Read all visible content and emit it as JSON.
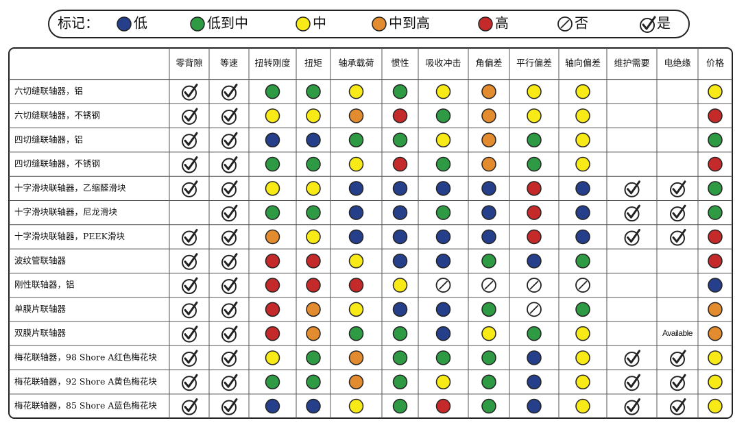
{
  "legend": {
    "title": "标记：",
    "items": [
      {
        "label": "低",
        "color": "#263f8a",
        "symbol": "circle"
      },
      {
        "label": "低到中",
        "color": "#2e9a43",
        "symbol": "circle"
      },
      {
        "label": "中",
        "color": "#f7ea16",
        "symbol": "circle"
      },
      {
        "label": "中到高",
        "color": "#e38b2f",
        "symbol": "circle"
      },
      {
        "label": "高",
        "color": "#c52a2a",
        "symbol": "circle"
      },
      {
        "label": "否",
        "color": "#ffffff",
        "symbol": "no"
      },
      {
        "label": "是",
        "color": "#ffffff",
        "symbol": "check"
      }
    ]
  },
  "table": {
    "columns": [
      "零背隙",
      "等速",
      "扭转刚度",
      "扭矩",
      "轴承载荷",
      "惯性",
      "吸收冲击",
      "角偏差",
      "平行偏差",
      "轴向偏差",
      "维护需要",
      "电绝缘",
      "价格"
    ],
    "rows": [
      {
        "label": "六切缝联轴器，铝",
        "cells": [
          "是",
          "是",
          "低到中",
          "低到中",
          "中",
          "低到中",
          "中",
          "中到高",
          "中",
          "中",
          null,
          null,
          "中"
        ]
      },
      {
        "label": "六切缝联轴器，不锈钢",
        "cells": [
          "是",
          "是",
          "中",
          "中",
          "中到高",
          "高",
          "低到中",
          "中到高",
          "中",
          "中",
          null,
          null,
          "高"
        ]
      },
      {
        "label": "四切缝联轴器，铝",
        "cells": [
          "是",
          "是",
          "低",
          "低",
          "低到中",
          "低到中",
          "中",
          "中到高",
          "低到中",
          "中",
          null,
          null,
          "低到中"
        ]
      },
      {
        "label": "四切缝联轴器，不锈钢",
        "cells": [
          "是",
          "是",
          "低到中",
          "低到中",
          "中",
          "高",
          "低到中",
          "中到高",
          "低到中",
          "中",
          null,
          null,
          "高"
        ]
      },
      {
        "label": "十字滑块联轴器，乙缩醛滑块",
        "cells": [
          "是",
          "是",
          "中",
          "中",
          "低",
          "低",
          "低",
          "低",
          "高",
          "低",
          "是",
          "是",
          "低到中"
        ]
      },
      {
        "label": "十字滑块联轴器，尼龙滑块",
        "cells": [
          null,
          "是",
          "低到中",
          "低到中",
          "低",
          "低",
          "低到中",
          "低",
          "高",
          "低",
          "是",
          "是",
          "低到中"
        ]
      },
      {
        "label": "十字滑块联轴器，PEEK滑块",
        "cells": [
          "是",
          "是",
          "中到高",
          "中",
          "低",
          "低",
          "低",
          "低",
          "高",
          "低",
          "是",
          "是",
          "高"
        ]
      },
      {
        "label": "波纹管联轴器",
        "cells": [
          "是",
          "是",
          "高",
          "高",
          "中",
          "低",
          "低",
          "低到中",
          "低",
          "低到中",
          null,
          null,
          "高"
        ]
      },
      {
        "label": "刚性联轴器，铝",
        "cells": [
          "是",
          "是",
          "高",
          "高",
          "高",
          "中",
          "否",
          "否",
          "否",
          "否",
          null,
          null,
          "低"
        ]
      },
      {
        "label": "单膜片联轴器",
        "cells": [
          "是",
          "是",
          "高",
          "中到高",
          "中",
          "低",
          "低",
          "低到中",
          "否",
          "低到中",
          null,
          null,
          "中到高"
        ]
      },
      {
        "label": "双膜片联轴器",
        "cells": [
          "是",
          "是",
          "高",
          "中到高",
          "低到中",
          "低到中",
          "低",
          "中",
          "低到中",
          "中",
          null,
          "Available",
          "中到高"
        ]
      },
      {
        "label": "梅花联轴器，98 Shore A红色梅花块",
        "cells": [
          "是",
          "是",
          "中",
          "低到中",
          "中到高",
          "低到中",
          "低到中",
          "低到中",
          "低",
          "中",
          "是",
          "是",
          "中"
        ]
      },
      {
        "label": "梅花联轴器，92 Shore A黄色梅花块",
        "cells": [
          "是",
          "是",
          "低到中",
          "低到中",
          "中到高",
          "低到中",
          "中",
          "低到中",
          "低",
          "中",
          "是",
          "是",
          "中"
        ]
      },
      {
        "label": "梅花联轴器，85 Shore A蓝色梅花块",
        "cells": [
          "是",
          "是",
          "低",
          "低",
          "中",
          "低到中",
          "高",
          "低到中",
          "低",
          "中",
          "是",
          "是",
          "中"
        ]
      }
    ]
  }
}
